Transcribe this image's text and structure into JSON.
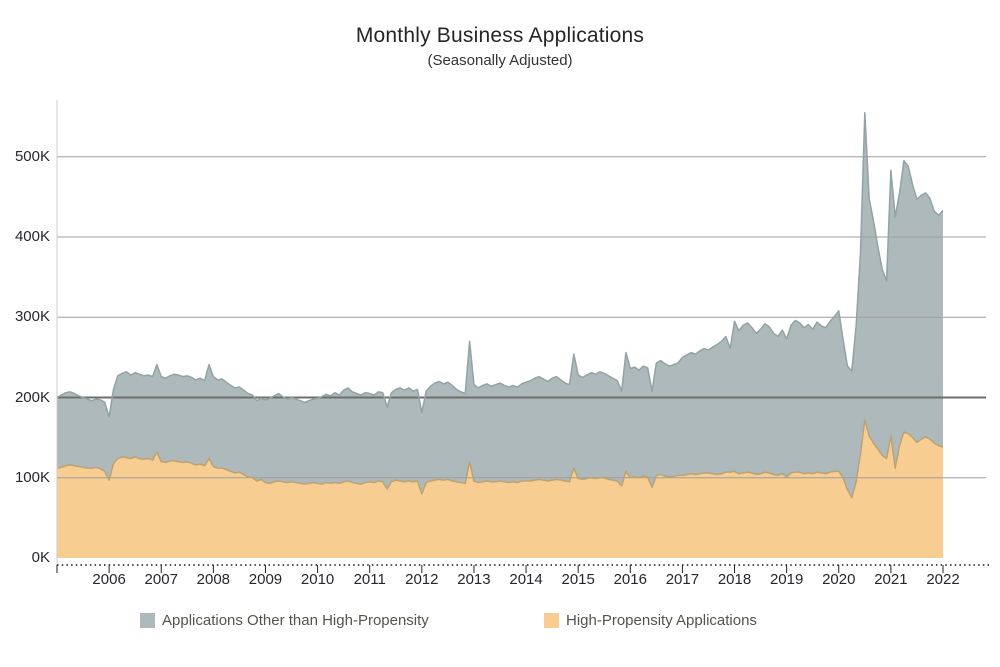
{
  "title": "Monthly Business Applications",
  "subtitle": "(Seasonally Adjusted)",
  "legend": [
    {
      "label": "Applications Other than High-Propensity",
      "color": "#aeb9bb"
    },
    {
      "label": "High-Propensity Applications",
      "color": "#f7cd92"
    }
  ],
  "colors": {
    "other_fill": "#aeb9bb",
    "other_stroke": "#91a3a4",
    "high_propensity_fill": "#f7cd92",
    "high_propensity_stroke": "#bda273",
    "gridline": "#9e9e9e",
    "gridline_emphasis": "#6e6e6e",
    "axis_dotted": "#141414",
    "axis_text": "#26262e"
  },
  "chart_data": {
    "type": "area",
    "stacked": true,
    "title": "Monthly Business Applications",
    "subtitle": "(Seasonally Adjusted)",
    "unit": "applications per month (K = thousands)",
    "x_start": {
      "year": 2005,
      "month": 1
    },
    "x_end": {
      "year": 2022,
      "month": 1
    },
    "x_frequency": "monthly",
    "x_tick_labels": [
      "2006",
      "2007",
      "2008",
      "2009",
      "2010",
      "2011",
      "2012",
      "2013",
      "2014",
      "2015",
      "2016",
      "2017",
      "2018",
      "2019",
      "2020",
      "2021",
      "2022"
    ],
    "y_tick_labels": [
      "0K",
      "100K",
      "200K",
      "300K",
      "400K",
      "500K"
    ],
    "y_ticks_thousands": [
      0,
      100,
      200,
      300,
      400,
      500
    ],
    "ylim_thousands": [
      0,
      575
    ],
    "grid": "horizontal",
    "legend_position": "bottom",
    "stack_note": "series stack bottom-to-top: high-propensity first, then other; top edge of stack = total business applications",
    "series": [
      {
        "name": "High-Propensity Applications",
        "fill": "#f7cd92",
        "stroke": "#bda273",
        "values_thousands": [
          112,
          113,
          115,
          116,
          115,
          114,
          113,
          112,
          112,
          113,
          111,
          108,
          97,
          118,
          124,
          126,
          125,
          124,
          126,
          124,
          123,
          124,
          122,
          132,
          120,
          119,
          121,
          121,
          120,
          119,
          120,
          118,
          116,
          117,
          115,
          124,
          114,
          112,
          112,
          110,
          108,
          106,
          107,
          104,
          101,
          100,
          96,
          98,
          94,
          93,
          95,
          96,
          95,
          94,
          95,
          94,
          93,
          92,
          93,
          94,
          93,
          92,
          94,
          93,
          94,
          93,
          95,
          96,
          94,
          93,
          92,
          94,
          95,
          94,
          96,
          95,
          86,
          95,
          97,
          96,
          95,
          96,
          95,
          96,
          80,
          94,
          96,
          97,
          98,
          97,
          98,
          96,
          95,
          94,
          93,
          120,
          96,
          94,
          95,
          96,
          95,
          95,
          96,
          95,
          94,
          95,
          94,
          96,
          96,
          96,
          97,
          98,
          97,
          96,
          97,
          98,
          97,
          96,
          95,
          112,
          99,
          98,
          99,
          100,
          99,
          100,
          100,
          98,
          97,
          96,
          90,
          108,
          100,
          101,
          100,
          102,
          101,
          88,
          103,
          104,
          102,
          101,
          102,
          103,
          103,
          104,
          105,
          104,
          105,
          106,
          106,
          105,
          104,
          105,
          107,
          107,
          108,
          105,
          106,
          107,
          106,
          104,
          105,
          107,
          106,
          104,
          103,
          105,
          101,
          106,
          107,
          107,
          105,
          106,
          105,
          107,
          106,
          105,
          107,
          108,
          108,
          100,
          85,
          75,
          95,
          130,
          172,
          152,
          143,
          136,
          128,
          124,
          152,
          112,
          140,
          157,
          155,
          150,
          144,
          148,
          151,
          148,
          143,
          140,
          138
        ]
      },
      {
        "name": "Applications Other than High-Propensity",
        "fill": "#aeb9bb",
        "stroke": "#91a3a4",
        "values_thousands": [
          88,
          90,
          91,
          91,
          90,
          88,
          87,
          86,
          84,
          85,
          86,
          86,
          79,
          92,
          103,
          104,
          107,
          104,
          105,
          105,
          104,
          104,
          104,
          109,
          106,
          105,
          106,
          108,
          108,
          107,
          107,
          107,
          106,
          107,
          106,
          117,
          112,
          110,
          111,
          109,
          107,
          106,
          106,
          105,
          104,
          103,
          100,
          101,
          103,
          106,
          107,
          109,
          106,
          104,
          105,
          104,
          103,
          102,
          103,
          104,
          106,
          109,
          110,
          109,
          112,
          110,
          114,
          116,
          113,
          112,
          111,
          112,
          110,
          109,
          111,
          111,
          102,
          111,
          113,
          116,
          114,
          116,
          113,
          114,
          101,
          114,
          118,
          121,
          122,
          120,
          121,
          119,
          115,
          113,
          112,
          150,
          120,
          118,
          120,
          121,
          119,
          121,
          122,
          120,
          119,
          120,
          119,
          121,
          123,
          125,
          127,
          128,
          126,
          124,
          127,
          128,
          125,
          122,
          121,
          142,
          129,
          127,
          129,
          131,
          130,
          132,
          130,
          129,
          127,
          125,
          118,
          148,
          136,
          137,
          134,
          137,
          136,
          120,
          140,
          142,
          140,
          138,
          139,
          140,
          147,
          149,
          151,
          150,
          153,
          155,
          153,
          158,
          162,
          165,
          169,
          154,
          187,
          178,
          184,
          186,
          181,
          176,
          180,
          185,
          182,
          176,
          173,
          179,
          172,
          184,
          189,
          186,
          182,
          185,
          180,
          187,
          183,
          182,
          188,
          193,
          200,
          172,
          154,
          158,
          195,
          250,
          383,
          296,
          277,
          252,
          232,
          221,
          331,
          313,
          315,
          338,
          333,
          315,
          303,
          304,
          304,
          300,
          289,
          287,
          295
        ]
      }
    ]
  }
}
